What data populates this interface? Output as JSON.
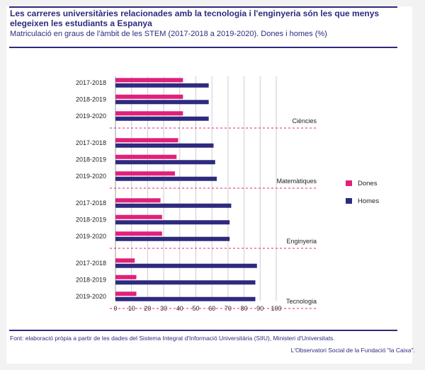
{
  "header": {
    "title": "Les carreres universitàries relacionades amb la tecnologia i l'enginyeria són les que menys elegeixen les estudiants a Espanya",
    "subtitle": "Matriculació en graus de l'àmbit de les STEM (2017-2018 a 2019-2020). Dones i homes (%)"
  },
  "footer": {
    "source": "Font: elaboració pròpia a partir de les dades del Sistema Integrat d'Informació Universitària (SIIU), Ministeri d'Universitats.",
    "credit": "L'Observatori Social de la Fundació \"la Caixa\"."
  },
  "colors": {
    "dones": "#e0217a",
    "homes": "#2e2a7e",
    "text": "#2e2a7e",
    "grid": "#cccccc",
    "divider": "#e0217a"
  },
  "chart_data": {
    "type": "bar",
    "orientation": "horizontal",
    "xlim": [
      0,
      100
    ],
    "xticks": [
      0,
      10,
      20,
      30,
      40,
      50,
      60,
      70,
      80,
      90,
      100
    ],
    "legend_position": "right",
    "series": [
      {
        "name": "Dones",
        "color": "#e0217a"
      },
      {
        "name": "Homes",
        "color": "#2e2a7e"
      }
    ],
    "groups": [
      {
        "label": "Ciències",
        "rows": [
          {
            "year": "2017-2018",
            "dones": 42,
            "homes": 58
          },
          {
            "year": "2018-2019",
            "dones": 42,
            "homes": 58
          },
          {
            "year": "2019-2020",
            "dones": 42,
            "homes": 58
          }
        ]
      },
      {
        "label": "Matemàtiques",
        "rows": [
          {
            "year": "2017-2018",
            "dones": 39,
            "homes": 61
          },
          {
            "year": "2018-2019",
            "dones": 38,
            "homes": 62
          },
          {
            "year": "2019-2020",
            "dones": 37,
            "homes": 63
          }
        ]
      },
      {
        "label": "Enginyeria",
        "rows": [
          {
            "year": "2017-2018",
            "dones": 28,
            "homes": 72
          },
          {
            "year": "2018-2019",
            "dones": 29,
            "homes": 71
          },
          {
            "year": "2019-2020",
            "dones": 29,
            "homes": 71
          }
        ]
      },
      {
        "label": "Tecnologia",
        "rows": [
          {
            "year": "2017-2018",
            "dones": 12,
            "homes": 88
          },
          {
            "year": "2018-2019",
            "dones": 13,
            "homes": 87
          },
          {
            "year": "2019-2020",
            "dones": 13,
            "homes": 87
          }
        ]
      }
    ]
  }
}
